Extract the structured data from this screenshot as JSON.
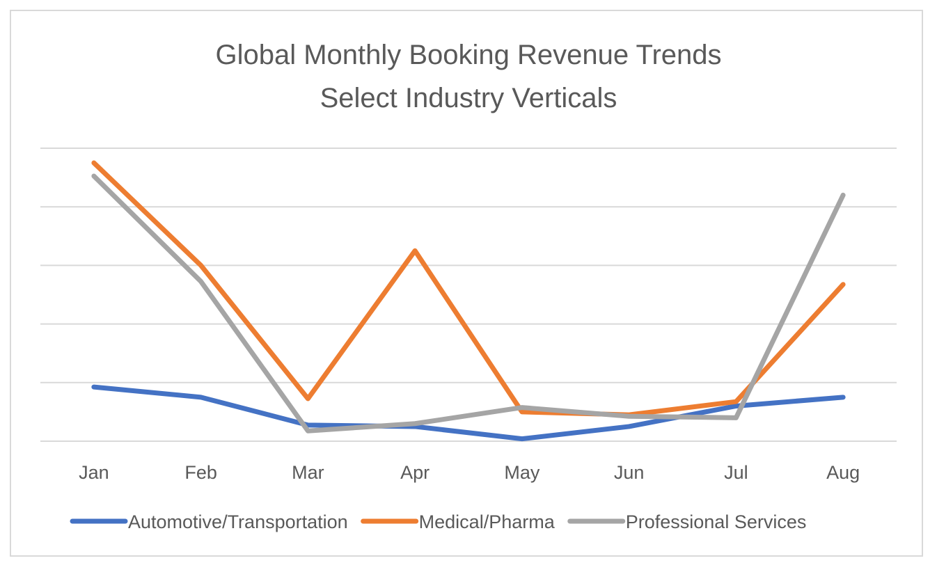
{
  "chart_data": {
    "type": "line",
    "title": "Global Monthly Booking Revenue Trends",
    "subtitle": "Select Industry Verticals",
    "xlabel": "",
    "ylabel": "",
    "categories": [
      "Jan",
      "Feb",
      "Mar",
      "Apr",
      "May",
      "Jun",
      "Jul",
      "Aug"
    ],
    "ylim": [
      0,
      10
    ],
    "gridlines": [
      0,
      2,
      4,
      6,
      8,
      10
    ],
    "grid": true,
    "y_tick_labels_visible": false,
    "legend_position": "bottom",
    "series": [
      {
        "name": "Automotive/Transportation",
        "color": "#4472c4",
        "values": [
          1.85,
          1.5,
          0.55,
          0.5,
          0.08,
          0.5,
          1.2,
          1.5
        ]
      },
      {
        "name": "Medical/Pharma",
        "color": "#ed7d31",
        "values": [
          9.5,
          6.0,
          1.45,
          6.5,
          1.0,
          0.9,
          1.35,
          5.35
        ]
      },
      {
        "name": "Professional Services",
        "color": "#a5a5a5",
        "values": [
          9.05,
          5.45,
          0.35,
          0.6,
          1.15,
          0.85,
          0.8,
          8.4
        ]
      }
    ]
  }
}
